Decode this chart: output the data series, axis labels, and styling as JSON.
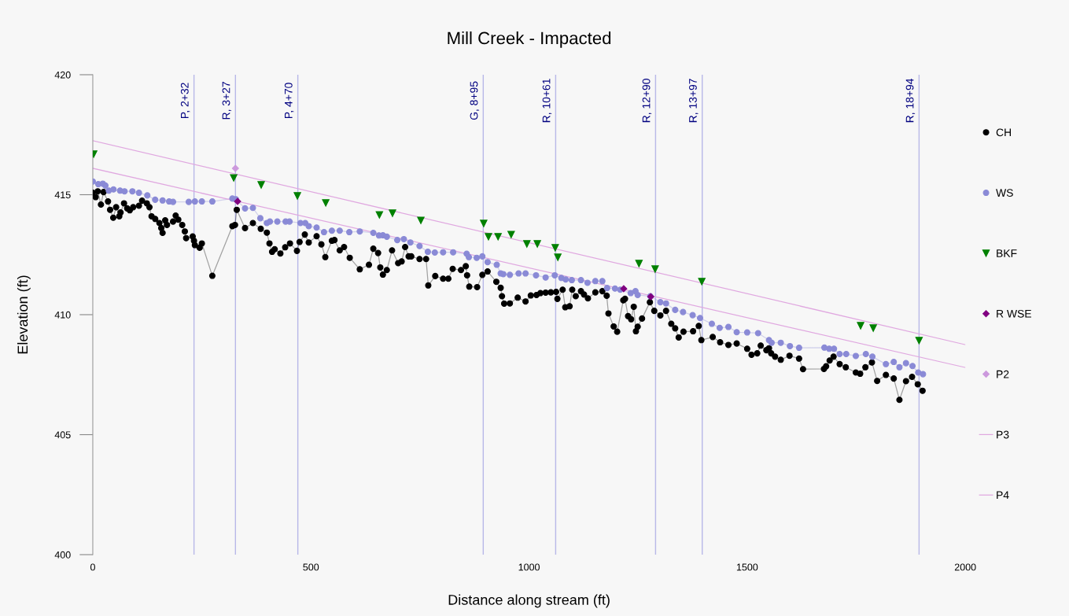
{
  "chart_data": {
    "type": "line",
    "title": "Mill Creek - Impacted",
    "xlabel": "Distance along stream (ft)",
    "ylabel": "Elevation (ft)",
    "xlim": [
      0,
      2000
    ],
    "xticks": [
      0,
      500,
      1000,
      1500,
      2000
    ],
    "ylim": [
      400,
      420
    ],
    "yticks": [
      400,
      405,
      410,
      415,
      420
    ],
    "grid": false,
    "legend": "right",
    "series": [
      {
        "name": "CH",
        "marker": "circle",
        "color": "#000000",
        "x": [
          0,
          6.6,
          11.4,
          18.7,
          24.7,
          34.9,
          39.7,
          46.9,
          53.5,
          60.7,
          63.7,
          71.6,
          78.8,
          84.8,
          92.6,
          105.8,
          113,
          123.9,
          129.9,
          134.7,
          143.1,
          152.7,
          157,
          160,
          166,
          170.1,
          184,
          190,
          196,
          205,
          211,
          214,
          229,
          232,
          234,
          245,
          250,
          274,
          320,
          326,
          330,
          349,
          367,
          385,
          399,
          405,
          411,
          417,
          430,
          441,
          452,
          468,
          474,
          486,
          495,
          513,
          524,
          533,
          548,
          554,
          566,
          576,
          589,
          612,
          633,
          643,
          654,
          659,
          665,
          674,
          686,
          700,
          708,
          716,
          724,
          730,
          749,
          764,
          769,
          785,
          803,
          815,
          825,
          844,
          855,
          858,
          863,
          881,
          893,
          905,
          925,
          935,
          938,
          943,
          956,
          974,
          992,
          1004,
          1017,
          1026,
          1038,
          1050,
          1062,
          1065,
          1077,
          1083,
          1093,
          1099,
          1107,
          1119,
          1126,
          1135,
          1152,
          1168,
          1178,
          1182,
          1194,
          1202,
          1216,
          1220,
          1227,
          1234,
          1240,
          1245,
          1249,
          1259,
          1277,
          1287,
          1301,
          1314,
          1326,
          1335,
          1343,
          1354,
          1376,
          1389,
          1395,
          1421,
          1438,
          1457,
          1476,
          1500,
          1510,
          1523,
          1531,
          1544,
          1550,
          1555,
          1564,
          1577,
          1597,
          1619,
          1628,
          1676,
          1681,
          1689,
          1698,
          1712,
          1726,
          1749,
          1759,
          1771,
          1786,
          1798,
          1818,
          1836,
          1849,
          1864,
          1878,
          1891,
          1902
        ],
        "values": [
          415.08,
          414.9,
          415.14,
          414.59,
          415.11,
          414.72,
          414.37,
          414.04,
          414.48,
          414.1,
          414.26,
          414.64,
          414.43,
          414.35,
          414.48,
          414.54,
          414.75,
          414.64,
          414.48,
          414.1,
          413.99,
          413.82,
          413.61,
          413.41,
          413.93,
          413.74,
          413.88,
          414.13,
          413.96,
          413.74,
          413.47,
          413.19,
          413.26,
          413.08,
          412.9,
          412.79,
          412.97,
          411.62,
          413.69,
          413.74,
          414.37,
          413.61,
          413.82,
          413.58,
          413.42,
          412.97,
          412.62,
          412.73,
          412.55,
          412.81,
          412.97,
          412.66,
          413.03,
          413.34,
          413.01,
          413.27,
          412.93,
          412.4,
          413.08,
          413.11,
          412.68,
          412.82,
          412.37,
          411.89,
          412.08,
          412.75,
          412.57,
          411.97,
          411.67,
          411.86,
          412.68,
          412.15,
          412.22,
          412.82,
          412.43,
          412.43,
          412.32,
          412.32,
          411.22,
          411.61,
          411.5,
          411.5,
          411.91,
          411.86,
          412.02,
          411.64,
          411.17,
          411.15,
          411.66,
          411.8,
          411.37,
          411.12,
          410.77,
          410.46,
          410.47,
          410.71,
          410.55,
          410.8,
          410.82,
          410.9,
          410.92,
          410.93,
          410.95,
          410.66,
          411.04,
          410.31,
          410.35,
          411.04,
          410.77,
          410.98,
          410.84,
          410.68,
          410.93,
          410.98,
          410.79,
          410.05,
          409.51,
          409.29,
          410.6,
          410.66,
          409.94,
          409.81,
          410.33,
          409.31,
          409.5,
          409.84,
          410.52,
          410.16,
          409.97,
          410.16,
          409.62,
          409.43,
          409.05,
          409.29,
          409.31,
          409.53,
          408.94,
          409.07,
          408.85,
          408.74,
          408.8,
          408.58,
          408.33,
          408.39,
          408.71,
          408.52,
          408.6,
          408.39,
          408.25,
          408.12,
          408.29,
          408.17,
          407.73,
          407.74,
          407.85,
          408.09,
          408.25,
          407.94,
          407.81,
          407.59,
          407.54,
          407.81,
          408.01,
          407.24,
          407.49,
          407.34,
          406.45,
          407.23,
          407.41,
          407.1,
          406.83
        ]
      },
      {
        "name": "WS",
        "marker": "circle",
        "color": "#8a8ad6",
        "x": [
          0,
          12.6,
          22.9,
          28.9,
          36.7,
          47.5,
          62.5,
          72.8,
          90.8,
          105.8,
          125,
          143,
          160,
          175,
          184,
          220,
          234,
          250,
          274,
          320,
          328,
          349,
          367,
          384,
          399,
          406,
          423,
          442,
          451,
          476,
          487,
          495,
          513,
          530,
          548,
          566,
          588,
          612,
          643,
          656,
          665,
          674,
          698,
          713,
          728,
          749,
          768,
          784,
          803,
          826,
          857,
          862,
          880,
          893,
          905,
          926,
          935,
          941,
          956,
          976,
          992,
          1016,
          1038,
          1059,
          1074,
          1084,
          1098,
          1119,
          1134,
          1152,
          1168,
          1179,
          1197,
          1209,
          1233,
          1244,
          1249,
          1278,
          1301,
          1314,
          1335,
          1353,
          1375,
          1392,
          1419,
          1437,
          1457,
          1476,
          1500,
          1525,
          1550,
          1556,
          1577,
          1598,
          1619,
          1677,
          1688,
          1699,
          1712,
          1727,
          1749,
          1772,
          1787,
          1818,
          1836,
          1849,
          1864,
          1879,
          1892,
          1903
        ],
        "values": [
          415.55,
          415.44,
          415.46,
          415.38,
          415.17,
          415.22,
          415.17,
          415.14,
          415.14,
          415.08,
          414.97,
          414.79,
          414.76,
          414.72,
          414.7,
          414.7,
          414.72,
          414.72,
          414.72,
          414.84,
          414.81,
          414.43,
          414.45,
          414.02,
          413.82,
          413.88,
          413.88,
          413.88,
          413.88,
          413.82,
          413.82,
          413.69,
          413.63,
          413.44,
          413.5,
          413.5,
          413.44,
          413.47,
          413.41,
          413.3,
          413.31,
          413.25,
          413.11,
          413.15,
          413.01,
          412.86,
          412.62,
          412.59,
          412.6,
          412.6,
          412.54,
          412.4,
          412.37,
          412.43,
          412.19,
          412.08,
          411.72,
          411.69,
          411.66,
          411.72,
          411.72,
          411.64,
          411.55,
          411.64,
          411.53,
          411.47,
          411.44,
          411.44,
          411.33,
          411.4,
          411.4,
          411.11,
          411.09,
          411.04,
          410.9,
          410.98,
          410.82,
          410.77,
          410.52,
          410.47,
          410.2,
          410.11,
          409.98,
          409.86,
          409.62,
          409.45,
          409.49,
          409.27,
          409.26,
          409.23,
          408.94,
          408.83,
          408.83,
          408.69,
          408.62,
          408.63,
          408.58,
          408.58,
          408.36,
          408.36,
          408.28,
          408.36,
          408.25,
          407.94,
          408.03,
          407.81,
          407.98,
          407.86,
          407.59,
          407.52
        ]
      },
      {
        "name": "BKF",
        "type": "scatter",
        "marker": "triangle",
        "color": "#008000",
        "x": [
          2,
          323,
          386,
          469,
          534,
          657,
          687,
          752,
          896,
          907,
          929,
          959,
          995,
          1019,
          1060,
          1066,
          1252,
          1289,
          1396,
          1760,
          1789,
          1894
        ],
        "values": [
          416.69,
          415.7,
          415.41,
          414.95,
          414.66,
          414.16,
          414.23,
          413.93,
          413.8,
          413.25,
          413.25,
          413.34,
          412.95,
          412.95,
          412.79,
          412.39,
          412.13,
          411.9,
          411.38,
          409.54,
          409.44,
          408.92
        ]
      },
      {
        "name": "R WSE",
        "type": "scatter",
        "marker": "diamond",
        "color": "#800080",
        "x": [
          332,
          1217,
          1279
        ],
        "values": [
          414.72,
          411.08,
          410.75
        ]
      },
      {
        "name": "P2",
        "type": "scatter",
        "marker": "diamond",
        "color": "#cc99dd",
        "x": [
          327
        ],
        "values": [
          416.1
        ]
      },
      {
        "name": "P3",
        "color": "#e0a8e0",
        "x": [
          0,
          2000
        ],
        "values": [
          417.25,
          408.75
        ]
      },
      {
        "name": "P4",
        "color": "#e0a8e0",
        "x": [
          0,
          2000
        ],
        "values": [
          416.1,
          407.8
        ]
      }
    ],
    "ref_lines": [
      {
        "axis": "x",
        "value": 232,
        "label": "P, 2+32",
        "color": "#b8b8e8"
      },
      {
        "axis": "x",
        "value": 327,
        "label": "R, 3+27",
        "color": "#b8b8e8"
      },
      {
        "axis": "x",
        "value": 470,
        "label": "P, 4+70",
        "color": "#b8b8e8"
      },
      {
        "axis": "x",
        "value": 895,
        "label": "G, 8+95",
        "color": "#b8b8e8"
      },
      {
        "axis": "x",
        "value": 1061,
        "label": "R, 10+61",
        "color": "#b8b8e8"
      },
      {
        "axis": "x",
        "value": 1290,
        "label": "R, 12+90",
        "color": "#b8b8e8"
      },
      {
        "axis": "x",
        "value": 1397,
        "label": "R, 13+97",
        "color": "#b8b8e8"
      },
      {
        "axis": "x",
        "value": 1894,
        "label": "R, 18+94",
        "color": "#b8b8e8"
      }
    ]
  }
}
